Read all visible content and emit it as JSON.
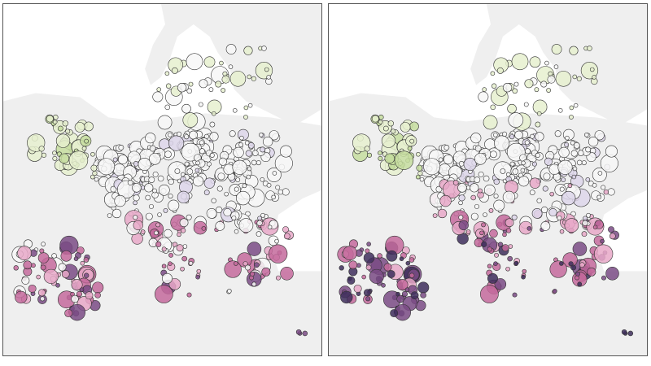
{
  "map": {
    "land_color": "#efefef",
    "sea_color": "#ffffff",
    "marker_stroke": "#333333",
    "palette": {
      "green": "#c5dd9f",
      "light_green": "#e6f0cf",
      "white": "#f7f7f7",
      "lavender": "#ddd6ea",
      "pink": "#e7a8c8",
      "magenta": "#c46a9c",
      "purple": "#7a4b85",
      "dark_purple": "#3e2e5c"
    },
    "panels": [
      {
        "id": "left",
        "shift": 0
      },
      {
        "id": "right",
        "shift": 1
      }
    ]
  }
}
